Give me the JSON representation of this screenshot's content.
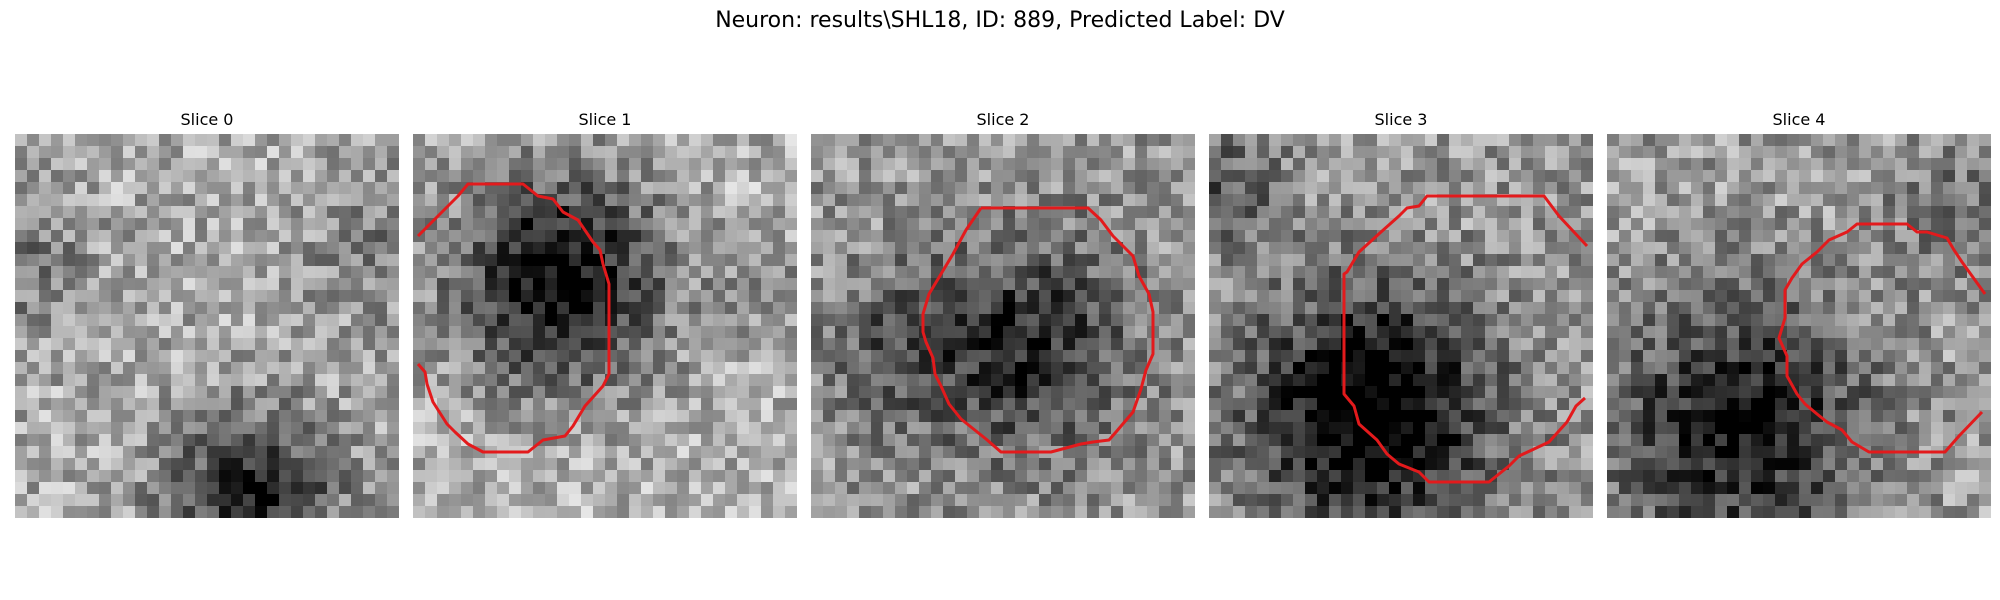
{
  "figure": {
    "title": "Neuron: results\\SHL18, ID: 889, Predicted Label: DV",
    "contour_color": "#e31a1c",
    "colormap": "gray",
    "grid_size": 32
  },
  "panels": [
    {
      "title": "Slice 0",
      "has_contour": false
    },
    {
      "title": "Slice 1",
      "has_contour": true
    },
    {
      "title": "Slice 2",
      "has_contour": true
    },
    {
      "title": "Slice 3",
      "has_contour": true
    },
    {
      "title": "Slice 4",
      "has_contour": true
    }
  ]
}
